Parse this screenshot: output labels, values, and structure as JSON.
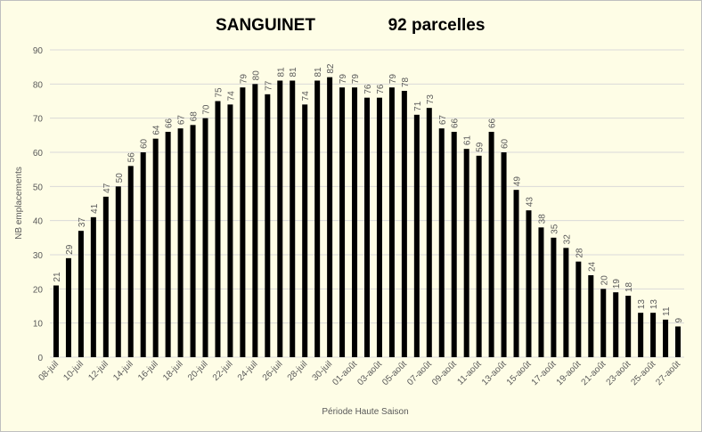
{
  "chart_data": {
    "type": "bar",
    "title": "SANGUINET",
    "subtitle": "92 parcelles",
    "x_label": "Période Haute Saison",
    "y_label": "NB emplacements",
    "categories": [
      "08-juil",
      null,
      "10-juil",
      null,
      "12-juil",
      null,
      "14-juil",
      null,
      "16-juil",
      null,
      "18-juil",
      null,
      "20-juil",
      null,
      "22-juil",
      null,
      "24-juil",
      null,
      "26-juil",
      null,
      "28-juil",
      null,
      "30-juil",
      null,
      "01-août",
      null,
      "03-août",
      null,
      "05-août",
      null,
      "07-août",
      null,
      "09-août",
      null,
      "11-août",
      null,
      "13-août",
      null,
      "15-août",
      null,
      "17-août",
      null,
      "19-août",
      null,
      "21-août",
      null,
      "23-août",
      null,
      "25-août",
      null,
      "27-août"
    ],
    "values": [
      21,
      29,
      37,
      41,
      47,
      50,
      56,
      60,
      64,
      66,
      67,
      68,
      70,
      75,
      74,
      79,
      80,
      77,
      81,
      81,
      74,
      81,
      82,
      79,
      79,
      76,
      76,
      79,
      78,
      71,
      73,
      67,
      66,
      61,
      59,
      66,
      60,
      49,
      43,
      38,
      35,
      32,
      28,
      24,
      20,
      19,
      18,
      13,
      13,
      11,
      9
    ],
    "color": "#000000",
    "ylim": [
      0,
      90
    ],
    "yticks": [
      0,
      10,
      20,
      30,
      40,
      50,
      60,
      70,
      80,
      90
    ],
    "grid": true
  }
}
